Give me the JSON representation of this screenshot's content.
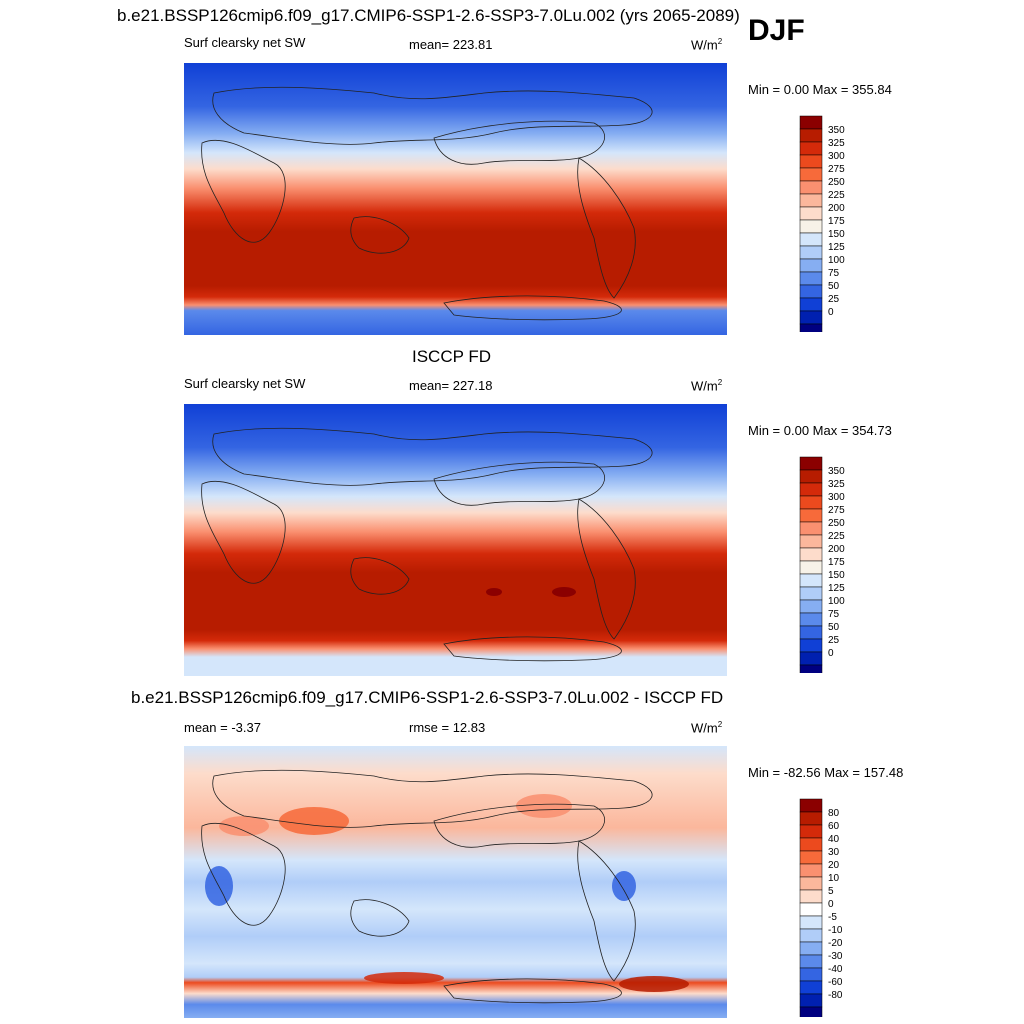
{
  "header": {
    "title": "b.e21.BSSP126cmip6.f09_g17.CMIP6-SSP1-2.6-SSP3-7.0Lu.002 (yrs 2065-2089)",
    "season": "DJF"
  },
  "panels": [
    {
      "heading": "",
      "variable": "Surf clearsky net SW",
      "stat": "mean= 223.81",
      "units": "W/m",
      "units_sup": "2",
      "minmax": "Min =   0.00 Max = 355.84",
      "colorbar": {
        "labels": [
          "350",
          "325",
          "300",
          "275",
          "250",
          "225",
          "200",
          "175",
          "150",
          "125",
          "100",
          "75",
          "50",
          "25",
          "0"
        ],
        "colors": [
          "#8b0000",
          "#b71c00",
          "#d42a0a",
          "#ec4a1e",
          "#f76a3a",
          "#fa9070",
          "#fbb79c",
          "#fddccb",
          "#f7f2e8",
          "#d4e6fb",
          "#b0cdf8",
          "#86aef2",
          "#5b8aeb",
          "#3465e2",
          "#1040d6",
          "#0020b0",
          "#000080"
        ]
      }
    },
    {
      "heading": "ISCCP FD",
      "variable": "Surf clearsky net SW",
      "stat": "mean= 227.18",
      "units": "W/m",
      "units_sup": "2",
      "minmax": "Min =   0.00 Max = 354.73",
      "colorbar": {
        "labels": [
          "350",
          "325",
          "300",
          "275",
          "250",
          "225",
          "200",
          "175",
          "150",
          "125",
          "100",
          "75",
          "50",
          "25",
          "0"
        ],
        "colors": [
          "#8b0000",
          "#b71c00",
          "#d42a0a",
          "#ec4a1e",
          "#f76a3a",
          "#fa9070",
          "#fbb79c",
          "#fddccb",
          "#f7f2e8",
          "#d4e6fb",
          "#b0cdf8",
          "#86aef2",
          "#5b8aeb",
          "#3465e2",
          "#1040d6",
          "#0020b0",
          "#000080"
        ]
      }
    },
    {
      "heading": "b.e21.BSSP126cmip6.f09_g17.CMIP6-SSP1-2.6-SSP3-7.0Lu.002 - ISCCP FD",
      "variable": "mean =  -3.37",
      "stat": "rmse =  12.83",
      "units": "W/m",
      "units_sup": "2",
      "minmax": "Min = -82.56 Max = 157.48",
      "colorbar": {
        "labels": [
          "80",
          "60",
          "40",
          "30",
          "20",
          "10",
          "5",
          "0",
          "-5",
          "-10",
          "-20",
          "-30",
          "-40",
          "-60",
          "-80"
        ],
        "colors": [
          "#8b0000",
          "#b71c00",
          "#d42a0a",
          "#ec4a1e",
          "#f76a3a",
          "#fa9070",
          "#fbb79c",
          "#fddccb",
          "#ffffff",
          "#d4e6fb",
          "#b0cdf8",
          "#86aef2",
          "#5b8aeb",
          "#3465e2",
          "#1040d6",
          "#0020b0",
          "#000080"
        ]
      }
    }
  ],
  "chart_data": [
    {
      "type": "heatmap",
      "title": "b.e21.BSSP126cmip6.f09_g17.CMIP6-SSP1-2.6-SSP3-7.0Lu.002 (yrs 2065-2089)",
      "subtitle": "Surf clearsky net SW",
      "units": "W/m2",
      "mean": 223.81,
      "min": 0.0,
      "max": 355.84,
      "levels": [
        0,
        25,
        50,
        75,
        100,
        125,
        150,
        175,
        200,
        225,
        250,
        275,
        300,
        325,
        350
      ]
    },
    {
      "type": "heatmap",
      "title": "ISCCP FD",
      "subtitle": "Surf clearsky net SW",
      "units": "W/m2",
      "mean": 227.18,
      "min": 0.0,
      "max": 354.73,
      "levels": [
        0,
        25,
        50,
        75,
        100,
        125,
        150,
        175,
        200,
        225,
        250,
        275,
        300,
        325,
        350
      ]
    },
    {
      "type": "heatmap",
      "title": "b.e21.BSSP126cmip6.f09_g17.CMIP6-SSP1-2.6-SSP3-7.0Lu.002 - ISCCP FD",
      "units": "W/m2",
      "mean": -3.37,
      "rmse": 12.83,
      "min": -82.56,
      "max": 157.48,
      "levels": [
        -80,
        -60,
        -40,
        -30,
        -20,
        -10,
        -5,
        0,
        5,
        10,
        20,
        30,
        40,
        60,
        80
      ]
    }
  ]
}
